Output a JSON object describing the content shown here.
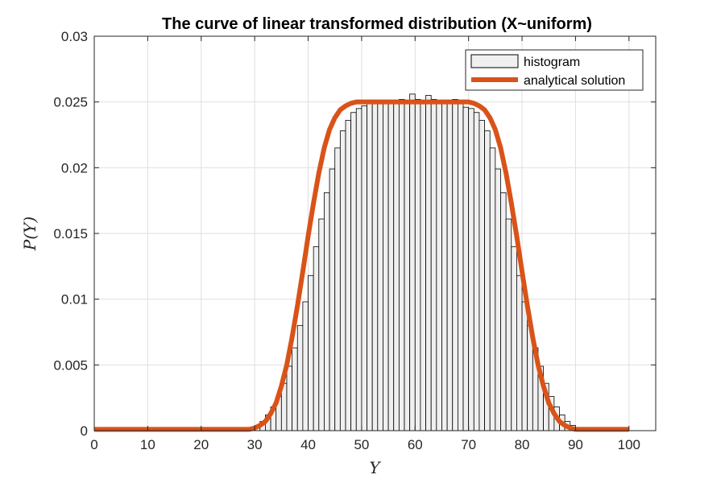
{
  "chart_data": {
    "type": "bar",
    "title": "The curve of linear transformed distribution (X~uniform)",
    "xlabel": "Y",
    "ylabel": "P(Y)",
    "xlim": [
      0,
      105
    ],
    "ylim": [
      0,
      0.03
    ],
    "xticks": [
      0,
      10,
      20,
      30,
      40,
      50,
      60,
      70,
      80,
      90,
      100
    ],
    "xtick_labels": [
      "0",
      "10",
      "20",
      "30",
      "40",
      "50",
      "60",
      "70",
      "80",
      "90",
      "100"
    ],
    "yticks": [
      0,
      0.005,
      0.01,
      0.015,
      0.02,
      0.025,
      0.03
    ],
    "ytick_labels": [
      "0",
      "0.005",
      "0.01",
      "0.015",
      "0.02",
      "0.025",
      "0.03"
    ],
    "grid": true,
    "legend_position": "top-right",
    "histogram": {
      "name": "histogram",
      "bin_width": 1,
      "bin_starts": [
        28,
        29,
        30,
        31,
        32,
        33,
        34,
        35,
        36,
        37,
        38,
        39,
        40,
        41,
        42,
        43,
        44,
        45,
        46,
        47,
        48,
        49,
        50,
        51,
        52,
        53,
        54,
        55,
        56,
        57,
        58,
        59,
        60,
        61,
        62,
        63,
        64,
        65,
        66,
        67,
        68,
        69,
        70,
        71,
        72,
        73,
        74,
        75,
        76,
        77,
        78,
        79,
        80,
        81,
        82,
        83,
        84,
        85,
        86,
        87,
        88,
        89,
        90,
        91
      ],
      "values": [
        0.0001,
        0.0002,
        0.0004,
        0.0007,
        0.0012,
        0.0018,
        0.0026,
        0.0036,
        0.0049,
        0.0063,
        0.008,
        0.0098,
        0.0118,
        0.014,
        0.0161,
        0.0181,
        0.0199,
        0.0215,
        0.0228,
        0.0236,
        0.0242,
        0.0245,
        0.0247,
        0.0249,
        0.025,
        0.0251,
        0.025,
        0.0249,
        0.0251,
        0.0252,
        0.025,
        0.0256,
        0.0252,
        0.0251,
        0.0255,
        0.0252,
        0.025,
        0.0249,
        0.0251,
        0.0252,
        0.025,
        0.0246,
        0.0245,
        0.0242,
        0.0236,
        0.0228,
        0.0215,
        0.0199,
        0.0181,
        0.0161,
        0.014,
        0.0118,
        0.0098,
        0.008,
        0.0063,
        0.0049,
        0.0036,
        0.0026,
        0.0018,
        0.0012,
        0.0007,
        0.0004,
        0.0002,
        0.0001
      ],
      "fill": "#f0f0f0",
      "edge": "#000000"
    },
    "series": [
      {
        "name": "analytical solution",
        "color": "#d95319",
        "x": [
          0,
          28,
          29,
          30,
          31,
          32,
          33,
          34,
          35,
          36,
          37,
          38,
          39,
          40,
          41,
          42,
          43,
          44,
          45,
          46,
          47,
          48,
          49,
          50,
          51,
          52,
          54,
          58,
          62,
          66,
          68,
          69,
          70,
          71,
          72,
          73,
          74,
          75,
          76,
          77,
          78,
          79,
          80,
          81,
          82,
          83,
          84,
          85,
          86,
          87,
          88,
          89,
          90,
          91,
          92,
          100
        ],
        "y": [
          0.0001,
          0.0001,
          0.0001,
          0.0002,
          0.0004,
          0.0007,
          0.0013,
          0.0021,
          0.0034,
          0.005,
          0.0071,
          0.0095,
          0.0121,
          0.0148,
          0.0173,
          0.0196,
          0.0215,
          0.0229,
          0.0238,
          0.0244,
          0.0247,
          0.0249,
          0.025,
          0.025,
          0.025,
          0.025,
          0.025,
          0.025,
          0.025,
          0.025,
          0.025,
          0.025,
          0.025,
          0.0249,
          0.0247,
          0.0244,
          0.0238,
          0.0229,
          0.0215,
          0.0196,
          0.0173,
          0.0148,
          0.0121,
          0.0095,
          0.0071,
          0.005,
          0.0034,
          0.0021,
          0.0013,
          0.0007,
          0.0004,
          0.0002,
          0.0001,
          0.0001,
          0.0001,
          0.0001
        ]
      }
    ]
  }
}
